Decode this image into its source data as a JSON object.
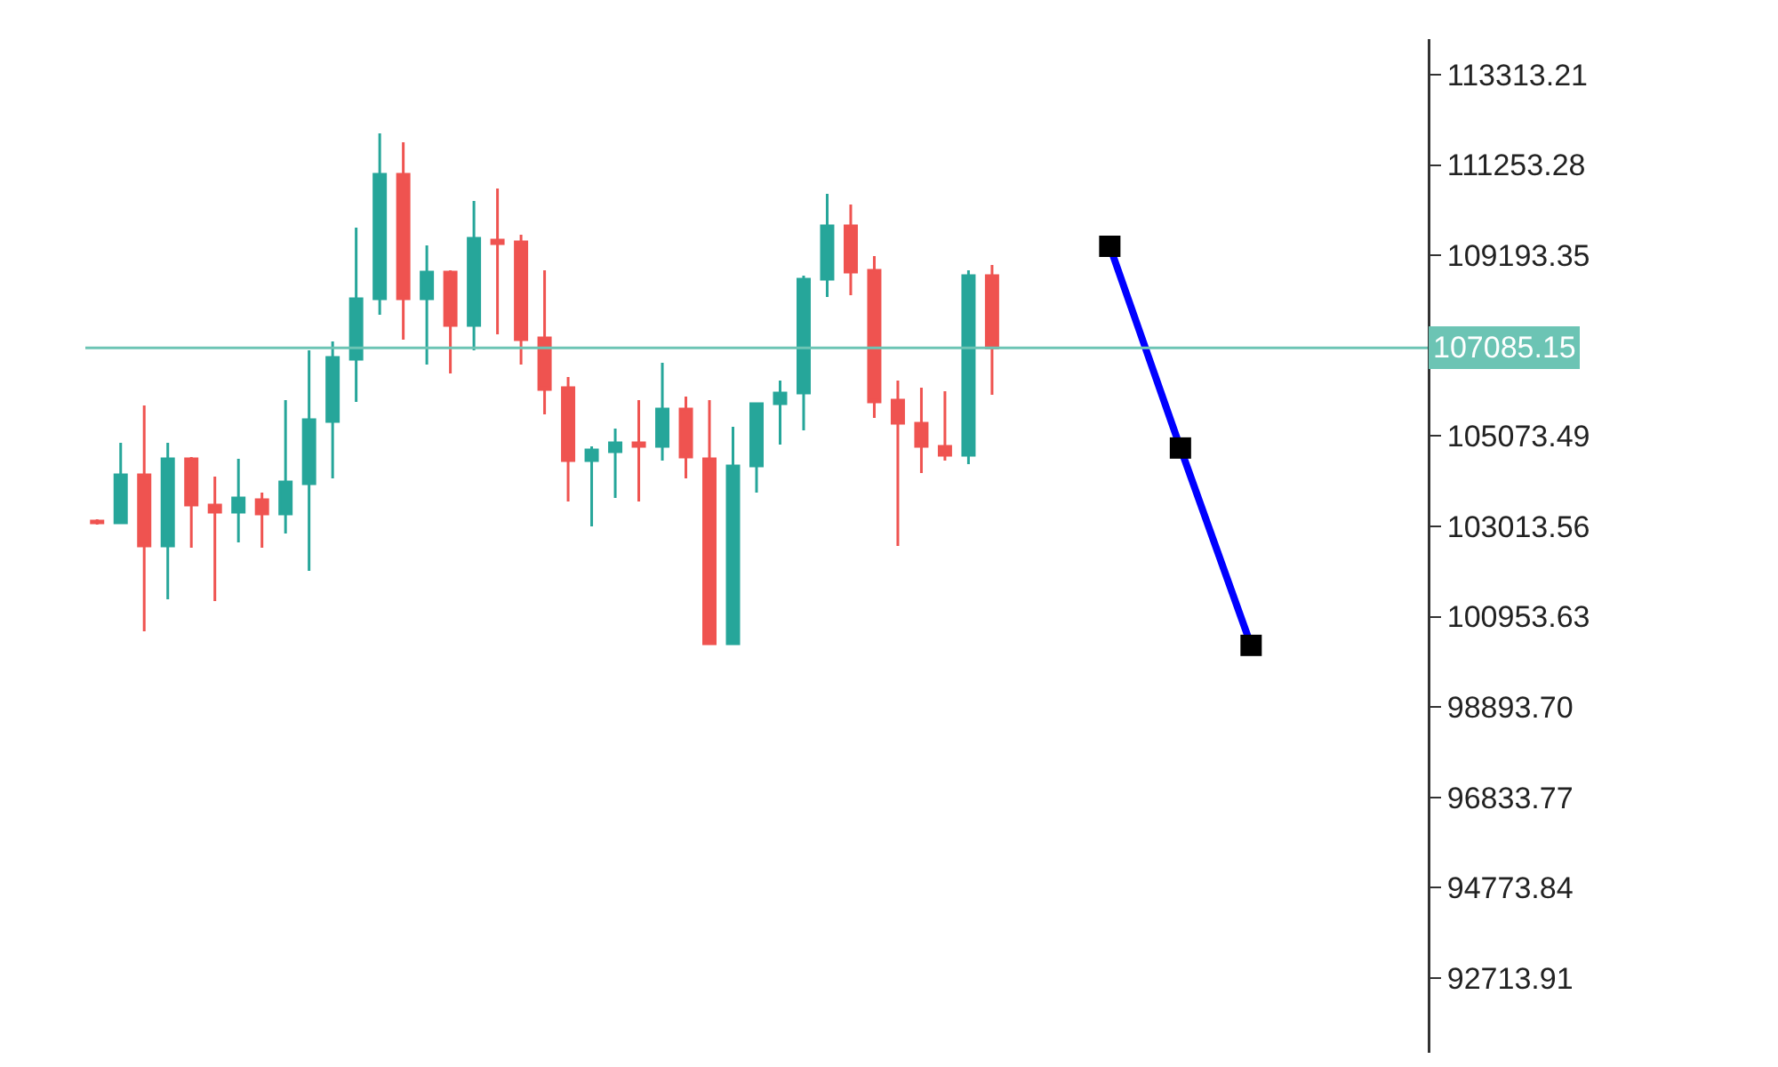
{
  "chart_data": {
    "type": "candlestick",
    "ylim": [
      91010,
      114124
    ],
    "categories": [
      null,
      null,
      null,
      null,
      null,
      null,
      null,
      null,
      null,
      null,
      null,
      null,
      null,
      null,
      null,
      null,
      null,
      null,
      null,
      null,
      null,
      null,
      null,
      null,
      null,
      null,
      null,
      null,
      null,
      null,
      null,
      null,
      null,
      null,
      null,
      null,
      null,
      null,
      null,
      null,
      null,
      null,
      null,
      null,
      null,
      null,
      null,
      null,
      null,
      null,
      null,
      null,
      null,
      null,
      null,
      null,
      null
    ],
    "yticks": [
      113313.21,
      111253.28,
      109193.35,
      105073.49,
      103013.56,
      100953.63,
      {
        "value": 98893.7,
        "label": "98893.70"
      },
      96833.77,
      94773.84,
      92713.91
    ],
    "tick_labels": "y",
    "grid": false,
    "marker": "square",
    "ref_lines": [
      {
        "axis": "y",
        "value": 107085.15,
        "label": "107085.15",
        "color": "#6cc4b4"
      }
    ],
    "series": [
      {
        "ohlc": [
          [
            103135,
            103175,
            103054,
            103094
          ],
          [
            103094,
            104919,
            103094,
            104189
          ],
          [
            104189,
            105771,
            100621,
            102567
          ],
          [
            102567,
            104919,
            101351,
            104554
          ],
          [
            104554,
            104595,
            102527,
            103500
          ],
          [
            103500,
            104149,
            101310,
            103338
          ],
          [
            103338,
            104554,
            102648,
            103662
          ],
          [
            103622,
            103784,
            102527,
            103297
          ],
          [
            103297,
            105892,
            102851,
            104027
          ],
          [
            103986,
            107028,
            102000,
            105446
          ],
          [
            105406,
            107230,
            104108,
            106866
          ],
          [
            106825,
            109826,
            105852,
            108204
          ],
          [
            108204,
            111975,
            107839,
            111042
          ],
          [
            111042,
            111772,
            107271,
            108204
          ],
          [
            108204,
            109420,
            106703,
            108812
          ],
          [
            108812,
            108852,
            106501,
            107595
          ],
          [
            107595,
            110434,
            107028,
            109582
          ],
          [
            109542,
            110718,
            107393,
            109461
          ],
          [
            109501,
            109663,
            106703,
            107271
          ],
          [
            107312,
            108852,
            105568,
            106136
          ],
          [
            106176,
            106419,
            103581,
            104514
          ],
          [
            104514,
            104838,
            103013,
            104757
          ],
          [
            104716,
            105244,
            103662,
            104919
          ],
          [
            104919,
            105892,
            103581,
            104838
          ],
          [
            104838,
            106744,
            104514,
            105690
          ],
          [
            105690,
            105973,
            104108,
            104595
          ],
          [
            104554,
            105892,
            100337,
            100337
          ],
          [
            100337,
            105284,
            100337,
            104392
          ],
          [
            104392,
            105811,
            103784,
            105811
          ],
          [
            105811,
            106338,
            104879,
            106055
          ],
          [
            106055,
            108731,
            105203,
            108650
          ],
          [
            108650,
            110596,
            108244,
            109866
          ],
          [
            109866,
            110353,
            108285,
            108812
          ],
          [
            108852,
            109177,
            105487,
            105852
          ],
          [
            105892,
            106338,
            102567,
            105365
          ],
          [
            105365,
            106176,
            104230,
            104838
          ],
          [
            104838,
            106095,
            104514,
            104635
          ],
          [
            104635,
            108852,
            104433,
            108731
          ],
          [
            108731,
            108974,
            106014,
            107085
          ],
          null,
          null,
          null,
          null,
          null,
          null,
          null,
          null,
          null,
          null,
          null,
          null,
          null,
          null,
          null,
          null,
          null,
          null
        ],
        "colors": [
          "#ef5350",
          "#26a69a",
          "#ef5350",
          "#26a69a",
          "#ef5350",
          "#ef5350",
          "#26a69a",
          "#ef5350",
          "#26a69a",
          "#26a69a",
          "#26a69a",
          "#26a69a",
          "#26a69a",
          "#ef5350",
          "#26a69a",
          "#ef5350",
          "#26a69a",
          "#ef5350",
          "#ef5350",
          "#ef5350",
          "#ef5350",
          "#26a69a",
          "#26a69a",
          "#ef5350",
          "#26a69a",
          "#ef5350",
          "#ef5350",
          "#26a69a",
          "#26a69a",
          "#26a69a",
          "#26a69a",
          "#26a69a",
          "#ef5350",
          "#ef5350",
          "#ef5350",
          "#ef5350",
          "#ef5350",
          "#26a69a",
          "#ef5350",
          null,
          null,
          null,
          null,
          null,
          null,
          null,
          null,
          null,
          null,
          null,
          null,
          null,
          null,
          null,
          null,
          null,
          null
        ]
      },
      {
        "type": "line",
        "color": "#0000ff",
        "values": [
          null,
          null,
          null,
          null,
          null,
          null,
          null,
          null,
          null,
          null,
          null,
          null,
          null,
          null,
          null,
          null,
          null,
          null,
          null,
          null,
          null,
          null,
          null,
          null,
          null,
          null,
          null,
          null,
          null,
          null,
          null,
          null,
          null,
          null,
          null,
          null,
          null,
          null,
          null,
          null,
          null,
          null,
          null,
          109400,
          null,
          null,
          104800,
          null,
          null,
          100300,
          null,
          null,
          null,
          null,
          null,
          null,
          null
        ]
      }
    ]
  }
}
